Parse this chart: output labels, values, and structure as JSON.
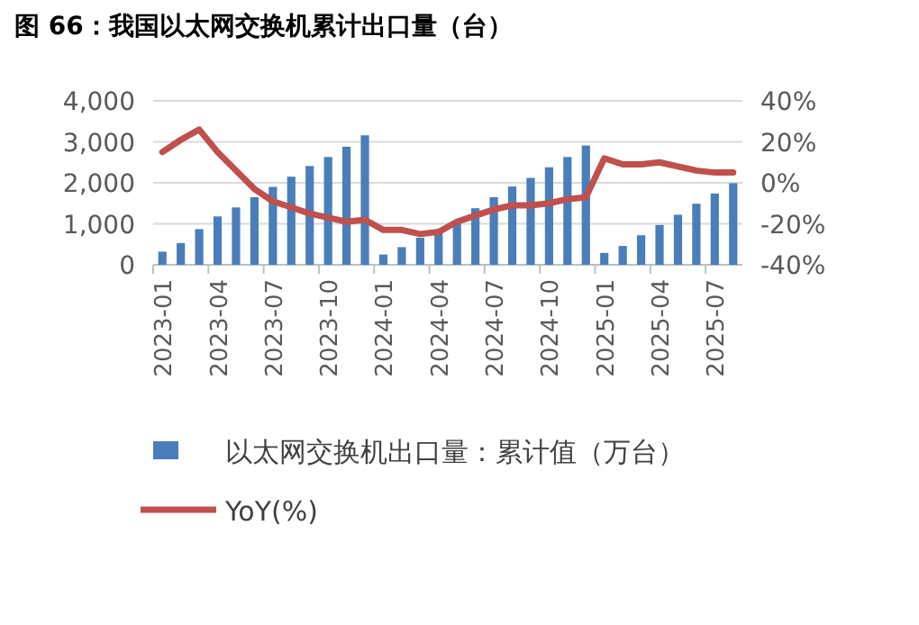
{
  "chart_data": {
    "type": "bar",
    "title": "图 66：我国以太网交换机累计出口量（台）",
    "categories": [
      "2023-01",
      null,
      null,
      "2023-04",
      null,
      null,
      "2023-07",
      null,
      null,
      "2023-10",
      null,
      null,
      "2024-01",
      null,
      null,
      "2024-04",
      null,
      null,
      "2024-07",
      null,
      null,
      "2024-10",
      null,
      null,
      "2025-01",
      null,
      null,
      "2025-04",
      null,
      null,
      "2025-07",
      null
    ],
    "series": [
      {
        "name": "以太网交换机出口量：累计值（万台）",
        "color": "#4a7ebb",
        "values": [
          320,
          530,
          870,
          1180,
          1400,
          1650,
          1900,
          2150,
          2410,
          2630,
          2880,
          3160,
          250,
          430,
          660,
          770,
          1000,
          1380,
          1650,
          1910,
          2120,
          2380,
          2630,
          2910,
          290,
          460,
          720,
          970,
          1220,
          1490,
          1740,
          1990
        ]
      },
      {
        "name": "YoY(%)",
        "type": "line",
        "axis": "y2",
        "color": "#c0504d",
        "values": [
          15,
          21,
          26,
          15,
          6,
          -3,
          -9,
          -12,
          -15,
          -17,
          -19,
          -18,
          -23,
          -23,
          -25,
          -24,
          -19,
          -16,
          -13,
          -11,
          -11,
          -10,
          -8,
          -7,
          12,
          9,
          9,
          10,
          8,
          6,
          5,
          5
        ]
      }
    ],
    "ylim": [
      0,
      4000
    ],
    "yticks": [
      {
        "value": 0,
        "label": "0"
      },
      {
        "value": 1000,
        "label": "1,000"
      },
      {
        "value": 2000,
        "label": "2,000"
      },
      {
        "value": 3000,
        "label": "3,000"
      },
      {
        "value": 4000,
        "label": "4,000"
      }
    ],
    "y2lim": [
      -40,
      40
    ],
    "y2ticks": [
      {
        "value": -40,
        "label": "-40%"
      },
      {
        "value": -20,
        "label": "-20%"
      },
      {
        "value": 0,
        "label": "0%"
      },
      {
        "value": 20,
        "label": "20%"
      },
      {
        "value": 40,
        "label": "40%"
      }
    ],
    "grid": "y",
    "legend": "bottom"
  }
}
